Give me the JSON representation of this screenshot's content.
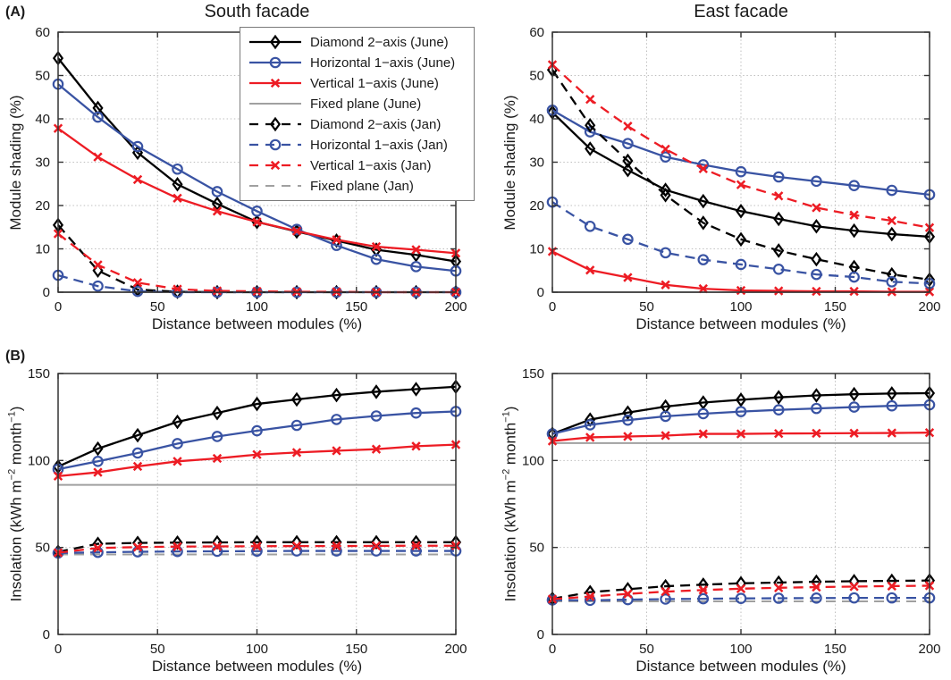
{
  "figure": {
    "panel_a": "(A)",
    "panel_b": "(B)"
  },
  "colors": {
    "black": "#000000",
    "blue": "#3953a3",
    "red": "#ed1c24",
    "gray": "#a0a0a0",
    "text": "#1a1a1a"
  },
  "legend": {
    "location": "upper right of south shading plot",
    "border": "#7a7a7a"
  },
  "chart_data": [
    {
      "id": "south-shading",
      "type": "line",
      "title": "South facade",
      "xlabel": "Distance between modules (%)",
      "ylabel_parts": [
        {
          "t": "Module shading (%)",
          "sup": false
        }
      ],
      "xlim": [
        0,
        200
      ],
      "ylim": [
        0,
        60
      ],
      "xticks": [
        0,
        50,
        100,
        150,
        200
      ],
      "yticks": [
        0,
        10,
        20,
        30,
        40,
        50,
        60
      ],
      "grid": true,
      "x": [
        0,
        20,
        40,
        60,
        80,
        100,
        120,
        140,
        160,
        180,
        200
      ],
      "series": [
        {
          "id": "diamond-2-axis-june",
          "name": "Diamond 2−axis (June)",
          "color": "black",
          "style": "solid",
          "marker": "diamond",
          "values": [
            54,
            42.5,
            32.2,
            24.9,
            20.4,
            16.2,
            14,
            11.9,
            9.8,
            8.6,
            7.1
          ]
        },
        {
          "id": "horizontal-1-axis-june",
          "name": "Horizontal 1−axis (June)",
          "color": "blue",
          "style": "solid",
          "marker": "circle",
          "values": [
            48,
            40.4,
            33.6,
            28.4,
            23.2,
            18.7,
            14.5,
            10.8,
            7.6,
            5.9,
            4.9
          ]
        },
        {
          "id": "vertical-1-axis-june",
          "name": "Vertical 1−axis (June)",
          "color": "red",
          "style": "solid",
          "marker": "x",
          "values": [
            37.8,
            31.2,
            26,
            21.7,
            18.7,
            16.2,
            14.1,
            12.1,
            10.5,
            9.8,
            9
          ]
        },
        {
          "id": "fixed-plane-june",
          "name": "Fixed plane (June)",
          "color": "gray",
          "style": "solid",
          "marker": "none",
          "values": [
            0,
            0,
            0,
            0,
            0,
            0,
            0,
            0,
            0,
            0,
            0
          ]
        },
        {
          "id": "diamond-2-axis-jan",
          "name": "Diamond 2−axis (Jan)",
          "color": "black",
          "style": "dashed",
          "marker": "diamond",
          "values": [
            15.5,
            5,
            0.6,
            0.1,
            0,
            0,
            0,
            0,
            0,
            0,
            0
          ]
        },
        {
          "id": "horizontal-1-axis-jan",
          "name": "Horizontal 1−axis (Jan)",
          "color": "blue",
          "style": "dashed",
          "marker": "circle",
          "values": [
            3.9,
            1.4,
            0.2,
            0,
            0,
            0,
            0,
            0,
            0,
            0,
            0
          ]
        },
        {
          "id": "vertical-1-axis-jan",
          "name": "Vertical 1−axis (Jan)",
          "color": "red",
          "style": "dashed",
          "marker": "x",
          "values": [
            13.5,
            6.3,
            2.2,
            0.7,
            0.3,
            0.2,
            0.1,
            0.1,
            0,
            0,
            0
          ]
        },
        {
          "id": "fixed-plane-jan",
          "name": "Fixed plane (Jan)",
          "color": "gray",
          "style": "dashed",
          "marker": "none",
          "values": [
            0,
            0,
            0,
            0,
            0,
            0,
            0,
            0,
            0,
            0,
            0
          ]
        }
      ]
    },
    {
      "id": "east-shading",
      "type": "line",
      "title": "East facade",
      "xlabel": "Distance between modules (%)",
      "ylabel_parts": [
        {
          "t": "Module shading (%)",
          "sup": false
        }
      ],
      "xlim": [
        0,
        200
      ],
      "ylim": [
        0,
        60
      ],
      "xticks": [
        0,
        50,
        100,
        150,
        200
      ],
      "yticks": [
        0,
        10,
        20,
        30,
        40,
        50,
        60
      ],
      "grid": true,
      "x": [
        0,
        20,
        40,
        60,
        80,
        100,
        120,
        140,
        160,
        180,
        200
      ],
      "series": [
        {
          "id": "diamond-2-axis-june",
          "name": "Diamond 2−axis (June)",
          "color": "black",
          "style": "solid",
          "marker": "diamond",
          "values": [
            41.5,
            33.1,
            28.2,
            23.6,
            21,
            18.7,
            16.9,
            15.2,
            14.2,
            13.4,
            12.8
          ]
        },
        {
          "id": "horizontal-1-axis-june",
          "name": "Horizontal 1−axis (June)",
          "color": "blue",
          "style": "solid",
          "marker": "circle",
          "values": [
            42,
            37,
            34.3,
            31.2,
            29.4,
            27.8,
            26.6,
            25.6,
            24.6,
            23.5,
            22.5
          ]
        },
        {
          "id": "vertical-1-axis-june",
          "name": "Vertical 1−axis (June)",
          "color": "red",
          "style": "solid",
          "marker": "x",
          "values": [
            9.4,
            5.1,
            3.4,
            1.7,
            0.8,
            0.4,
            0.3,
            0.2,
            0.2,
            0.1,
            0.1
          ]
        },
        {
          "id": "fixed-plane-june",
          "name": "Fixed plane (June)",
          "color": "gray",
          "style": "solid",
          "marker": "none",
          "values": [
            0,
            0,
            0,
            0,
            0,
            0,
            0,
            0,
            0,
            0,
            0
          ]
        },
        {
          "id": "diamond-2-axis-jan",
          "name": "Diamond 2−axis (Jan)",
          "color": "black",
          "style": "dashed",
          "marker": "diamond",
          "values": [
            51.3,
            38.5,
            30.3,
            22.4,
            16,
            12.2,
            9.6,
            7.6,
            5.8,
            4.1,
            2.9
          ]
        },
        {
          "id": "horizontal-1-axis-jan",
          "name": "Horizontal 1−axis (Jan)",
          "color": "blue",
          "style": "dashed",
          "marker": "circle",
          "values": [
            20.8,
            15.2,
            12.2,
            9.1,
            7.5,
            6.4,
            5.3,
            4.1,
            3.5,
            2.4,
            2
          ]
        },
        {
          "id": "vertical-1-axis-jan",
          "name": "Vertical 1−axis (Jan)",
          "color": "red",
          "style": "dashed",
          "marker": "x",
          "values": [
            52.5,
            44.5,
            38.3,
            33,
            28.5,
            24.8,
            22.2,
            19.5,
            17.8,
            16.5,
            14.9
          ]
        },
        {
          "id": "fixed-plane-jan",
          "name": "Fixed plane (Jan)",
          "color": "gray",
          "style": "dashed",
          "marker": "none",
          "values": [
            0,
            0,
            0,
            0,
            0,
            0,
            0,
            0,
            0,
            0,
            0
          ]
        }
      ]
    },
    {
      "id": "south-insolation",
      "type": "line",
      "title": "",
      "xlabel": "Distance between modules (%)",
      "ylabel_parts": [
        {
          "t": "Insolation (kWh m",
          "sup": false
        },
        {
          "t": "−2",
          "sup": true
        },
        {
          "t": " month",
          "sup": false
        },
        {
          "t": "−1",
          "sup": true
        },
        {
          "t": ")",
          "sup": false
        }
      ],
      "xlim": [
        0,
        200
      ],
      "ylim": [
        0,
        150
      ],
      "xticks": [
        0,
        50,
        100,
        150,
        200
      ],
      "yticks": [
        0,
        50,
        100,
        150
      ],
      "grid": true,
      "x": [
        0,
        20,
        40,
        60,
        80,
        100,
        120,
        140,
        160,
        180,
        200
      ],
      "series": [
        {
          "id": "diamond-2-axis-june",
          "name": "Diamond 2−axis (June)",
          "color": "black",
          "style": "solid",
          "marker": "diamond",
          "values": [
            96.5,
            106.8,
            114.5,
            122.2,
            127.3,
            132.5,
            135.1,
            137.6,
            139.5,
            141,
            142.4
          ]
        },
        {
          "id": "horizontal-1-axis-june",
          "name": "Horizontal 1−axis (June)",
          "color": "blue",
          "style": "solid",
          "marker": "circle",
          "values": [
            95,
            99.5,
            104.3,
            109.7,
            113.8,
            117.1,
            120.2,
            123.6,
            125.6,
            127.3,
            128.2
          ]
        },
        {
          "id": "vertical-1-axis-june",
          "name": "Vertical 1−axis (June)",
          "color": "red",
          "style": "solid",
          "marker": "x",
          "values": [
            91,
            93.2,
            96.6,
            99.5,
            101.2,
            103.4,
            104.6,
            105.6,
            106.5,
            108.2,
            109.1
          ]
        },
        {
          "id": "fixed-plane-june",
          "name": "Fixed plane (June)",
          "color": "gray",
          "style": "solid",
          "marker": "none",
          "values": [
            86,
            86,
            86,
            86,
            86,
            86,
            86,
            86,
            86,
            86,
            86
          ]
        },
        {
          "id": "diamond-2-axis-jan",
          "name": "Diamond 2−axis (Jan)",
          "color": "black",
          "style": "dashed",
          "marker": "diamond",
          "values": [
            47.5,
            52.1,
            52.6,
            52.8,
            52.9,
            53,
            53,
            53,
            53,
            53,
            53
          ]
        },
        {
          "id": "horizontal-1-axis-jan",
          "name": "Horizontal 1−axis (Jan)",
          "color": "blue",
          "style": "dashed",
          "marker": "circle",
          "values": [
            46.8,
            47.2,
            47.5,
            47.7,
            47.8,
            47.9,
            48,
            48,
            48,
            48,
            48
          ]
        },
        {
          "id": "vertical-1-axis-jan",
          "name": "Vertical 1−axis (Jan)",
          "color": "red",
          "style": "dashed",
          "marker": "x",
          "values": [
            47,
            49.7,
            50.2,
            50.5,
            50.6,
            50.7,
            50.8,
            50.8,
            50.9,
            51,
            51
          ]
        },
        {
          "id": "fixed-plane-jan",
          "name": "Fixed plane (Jan)",
          "color": "gray",
          "style": "dashed",
          "marker": "none",
          "values": [
            46,
            46,
            46,
            46,
            46,
            46,
            46,
            46,
            46,
            46,
            46
          ]
        }
      ]
    },
    {
      "id": "east-insolation",
      "type": "line",
      "title": "",
      "xlabel": "Distance between modules (%)",
      "ylabel_parts": [
        {
          "t": "Insolation (kWh m",
          "sup": false
        },
        {
          "t": "−2",
          "sup": true
        },
        {
          "t": " month",
          "sup": false
        },
        {
          "t": "−1",
          "sup": true
        },
        {
          "t": ")",
          "sup": false
        }
      ],
      "xlim": [
        0,
        200
      ],
      "ylim": [
        0,
        150
      ],
      "xticks": [
        0,
        50,
        100,
        150,
        200
      ],
      "yticks": [
        0,
        50,
        100,
        150
      ],
      "grid": true,
      "x": [
        0,
        20,
        40,
        60,
        80,
        100,
        120,
        140,
        160,
        180,
        200
      ],
      "series": [
        {
          "id": "diamond-2-axis-june",
          "name": "Diamond 2−axis (June)",
          "color": "black",
          "style": "solid",
          "marker": "diamond",
          "values": [
            115.3,
            123.5,
            127.5,
            131,
            133.3,
            134.9,
            136.3,
            137.4,
            138.1,
            138.5,
            138.7
          ]
        },
        {
          "id": "horizontal-1-axis-june",
          "name": "Horizontal 1−axis (June)",
          "color": "blue",
          "style": "solid",
          "marker": "circle",
          "values": [
            115.3,
            120.5,
            123.2,
            125.4,
            126.9,
            128.1,
            129.1,
            129.9,
            130.7,
            131.4,
            132
          ]
        },
        {
          "id": "vertical-1-axis-june",
          "name": "Vertical 1−axis (June)",
          "color": "red",
          "style": "solid",
          "marker": "x",
          "values": [
            111.2,
            113.3,
            113.8,
            114.3,
            115.3,
            115.3,
            115.5,
            115.6,
            115.7,
            115.8,
            116
          ]
        },
        {
          "id": "fixed-plane-june",
          "name": "Fixed plane (June)",
          "color": "gray",
          "style": "solid",
          "marker": "none",
          "values": [
            110,
            110,
            110,
            110,
            110,
            110,
            110,
            110,
            110,
            110,
            110
          ]
        },
        {
          "id": "diamond-2-axis-jan",
          "name": "Diamond 2−axis (Jan)",
          "color": "black",
          "style": "dashed",
          "marker": "diamond",
          "values": [
            20.5,
            24.3,
            26,
            27.7,
            28.6,
            29.4,
            29.8,
            30.3,
            30.6,
            30.8,
            31
          ]
        },
        {
          "id": "horizontal-1-axis-jan",
          "name": "Horizontal 1−axis (Jan)",
          "color": "blue",
          "style": "dashed",
          "marker": "circle",
          "values": [
            19.8,
            19.6,
            20,
            20.3,
            20.5,
            20.7,
            20.8,
            20.9,
            21,
            21,
            21
          ]
        },
        {
          "id": "vertical-1-axis-jan",
          "name": "Vertical 1−axis (Jan)",
          "color": "red",
          "style": "dashed",
          "marker": "x",
          "values": [
            20.3,
            21.8,
            23.3,
            24.6,
            25.5,
            26.3,
            26.8,
            27.2,
            27.5,
            27.8,
            28
          ]
        },
        {
          "id": "fixed-plane-jan",
          "name": "Fixed plane (Jan)",
          "color": "gray",
          "style": "dashed",
          "marker": "none",
          "values": [
            19,
            19,
            19,
            19,
            19,
            19,
            19,
            19,
            19,
            19,
            19
          ]
        }
      ]
    }
  ]
}
